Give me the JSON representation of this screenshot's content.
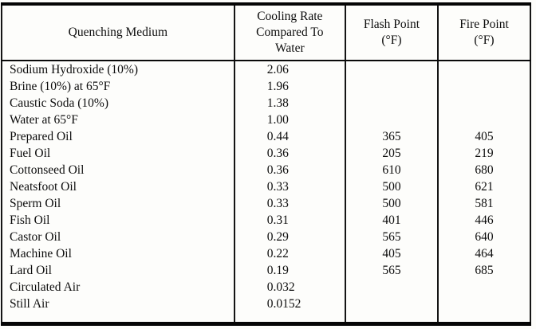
{
  "table": {
    "headers": {
      "medium": "Quenching Medium",
      "cooling_rate": "Cooling Rate\nCompared To\nWater",
      "flash_point": "Flash Point\n(°F)",
      "fire_point": "Fire Point\n(°F)"
    },
    "rows": [
      {
        "medium": "Sodium Hydroxide (10%)",
        "cooling_rate": "2.06",
        "flash_point": "",
        "fire_point": ""
      },
      {
        "medium": "Brine (10%) at 65°F",
        "cooling_rate": "1.96",
        "flash_point": "",
        "fire_point": ""
      },
      {
        "medium": "Caustic Soda (10%)",
        "cooling_rate": "1.38",
        "flash_point": "",
        "fire_point": ""
      },
      {
        "medium": "Water at 65°F",
        "cooling_rate": "1.00",
        "flash_point": "",
        "fire_point": ""
      },
      {
        "medium": "Prepared Oil",
        "cooling_rate": "0.44",
        "flash_point": "365",
        "fire_point": "405"
      },
      {
        "medium": "Fuel Oil",
        "cooling_rate": "0.36",
        "flash_point": "205",
        "fire_point": "219"
      },
      {
        "medium": "Cottonseed Oil",
        "cooling_rate": "0.36",
        "flash_point": "610",
        "fire_point": "680"
      },
      {
        "medium": "Neatsfoot Oil",
        "cooling_rate": "0.33",
        "flash_point": "500",
        "fire_point": "621"
      },
      {
        "medium": "Sperm Oil",
        "cooling_rate": "0.33",
        "flash_point": "500",
        "fire_point": "581"
      },
      {
        "medium": "Fish Oil",
        "cooling_rate": "0.31",
        "flash_point": "401",
        "fire_point": "446"
      },
      {
        "medium": "Castor Oil",
        "cooling_rate": "0.29",
        "flash_point": "565",
        "fire_point": "640"
      },
      {
        "medium": "Machine Oil",
        "cooling_rate": "0.22",
        "flash_point": "405",
        "fire_point": "464"
      },
      {
        "medium": "Lard Oil",
        "cooling_rate": "0.19",
        "flash_point": "565",
        "fire_point": "685"
      },
      {
        "medium": "Circulated Air",
        "cooling_rate": "0.032",
        "flash_point": "",
        "fire_point": ""
      },
      {
        "medium": "Still Air",
        "cooling_rate": "0.0152",
        "flash_point": "",
        "fire_point": ""
      }
    ],
    "border_color": "#000000",
    "background_color": "#fdfdfb"
  }
}
